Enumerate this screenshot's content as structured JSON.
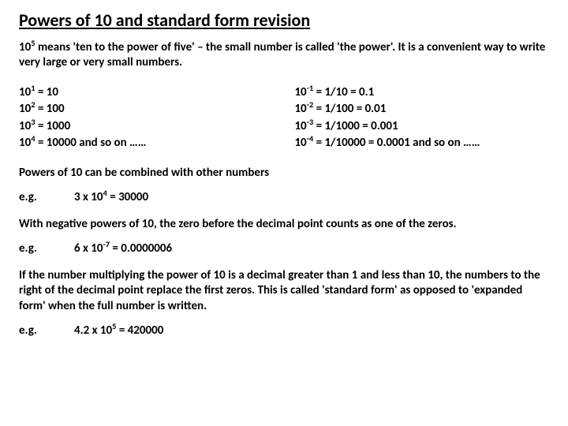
{
  "title": "Powers of 10 and standard form revision",
  "intro_a": "10",
  "intro_sup": "5",
  "intro_b": " means 'ten to the power of five' – the small number is called 'the power'.  It is a convenient way to write very large or very small numbers.",
  "pos": [
    {
      "exp": "1",
      "rhs": " = 10"
    },
    {
      "exp": "2",
      "rhs": " = 100"
    },
    {
      "exp": "3",
      "rhs": " = 1000"
    },
    {
      "exp": "4",
      "rhs": " = 10000  and so on ……"
    }
  ],
  "neg": [
    {
      "exp": "-1",
      "rhs": " = 1/10 = 0.1"
    },
    {
      "exp": "-2",
      "rhs": " = 1/100 = 0.01"
    },
    {
      "exp": "-3",
      "rhs": " = 1/1000 = 0.001"
    },
    {
      "exp": "-4",
      "rhs": " = 1/10000 = 0.0001 and so on ……"
    }
  ],
  "para_combine": "Powers of 10 can be combined with other numbers",
  "eg_label": "e.g.",
  "eg1_a": "3 x 10",
  "eg1_sup": "4",
  "eg1_b": " = 30000",
  "para_neg": "With negative powers of 10, the zero before the decimal point counts as one of the zeros.",
  "eg2_a": "6 x 10",
  "eg2_sup": "-7",
  "eg2_b": " = 0.0000006",
  "para_std": "If the number multiplying the power of 10 is a decimal greater than 1 and less than 10, the numbers to the right of the decimal point replace the first zeros.  This is called 'standard form' as opposed to 'expanded form' when the full number is written.",
  "eg3_a": "4.2 x 10",
  "eg3_sup": "5",
  "eg3_b": " = 420000",
  "colors": {
    "text": "#000000",
    "bg": "#ffffff"
  },
  "typography": {
    "title_fontsize": 22,
    "body_fontsize": 15,
    "weight": "bold"
  }
}
